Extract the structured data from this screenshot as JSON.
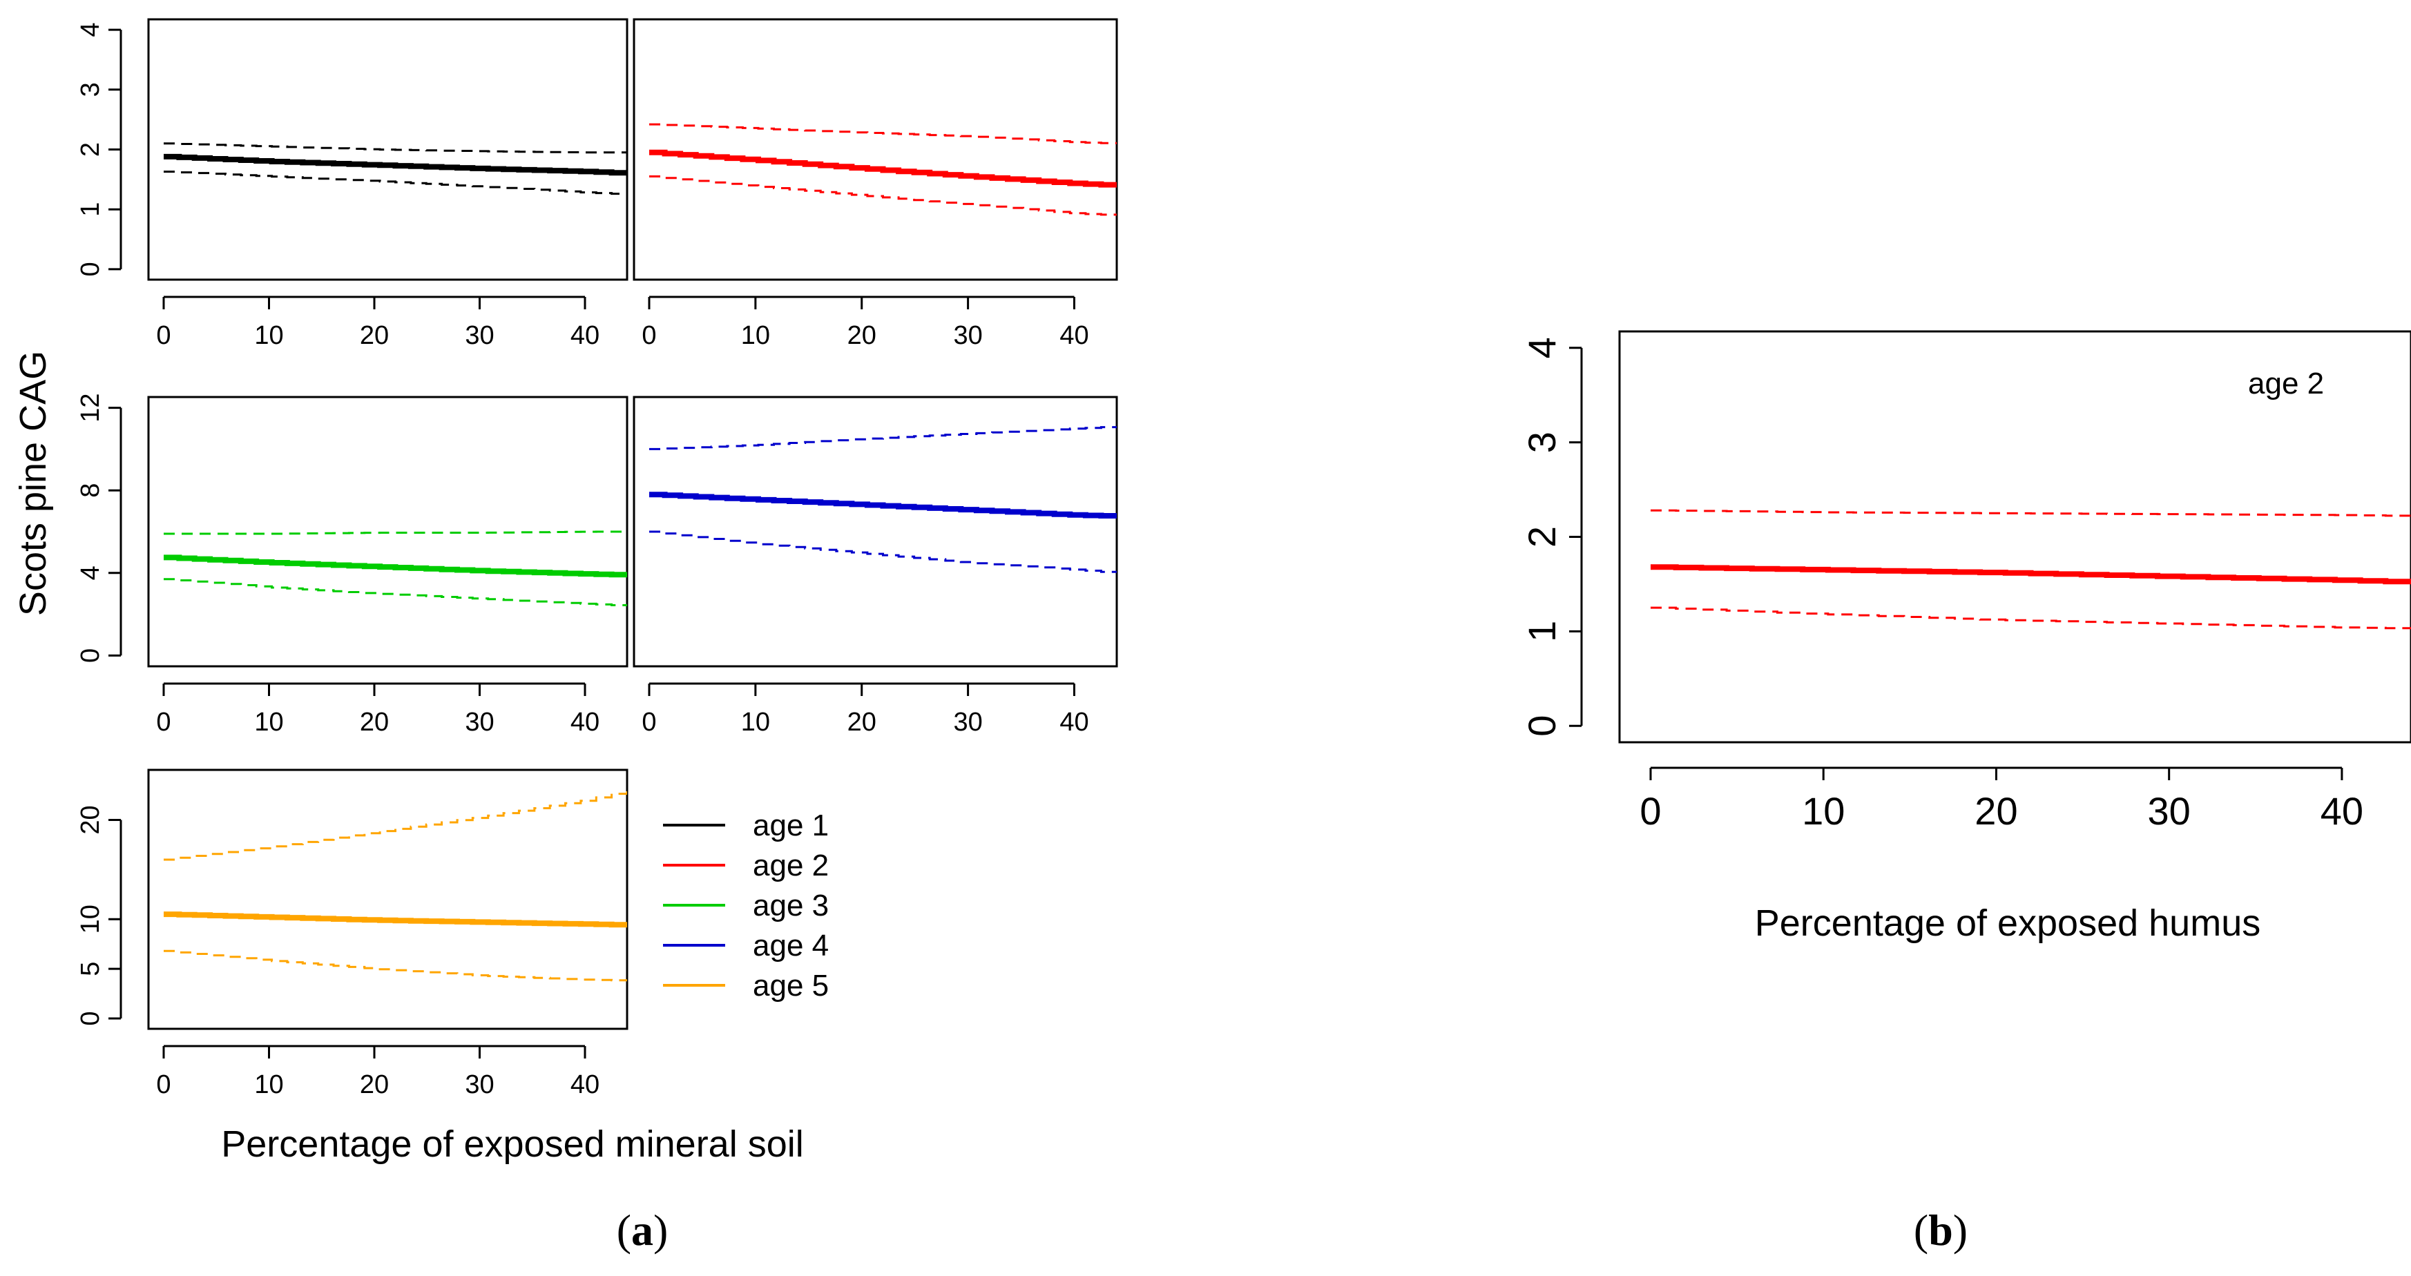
{
  "figure": {
    "label_a": "a",
    "label_b": "b"
  },
  "chart_data": [
    {
      "id": "age1",
      "type": "line",
      "color": "#000000",
      "x": [
        0,
        10,
        20,
        30,
        40,
        44
      ],
      "estimate": [
        1.88,
        1.8,
        1.74,
        1.68,
        1.63,
        1.6
      ],
      "upper": [
        2.1,
        2.05,
        2.0,
        1.97,
        1.95,
        1.95
      ],
      "lower": [
        1.63,
        1.55,
        1.47,
        1.38,
        1.28,
        1.25
      ],
      "xlim": [
        0,
        44
      ],
      "ylim": [
        0,
        4
      ],
      "xticks": [
        0,
        10,
        20,
        30,
        40
      ],
      "yticks": [
        0,
        1,
        2,
        3,
        4
      ]
    },
    {
      "id": "age2",
      "type": "line",
      "color": "#ff0000",
      "x": [
        0,
        10,
        20,
        30,
        40,
        44
      ],
      "estimate": [
        1.95,
        1.82,
        1.68,
        1.55,
        1.43,
        1.4
      ],
      "upper": [
        2.42,
        2.35,
        2.28,
        2.22,
        2.12,
        2.1
      ],
      "lower": [
        1.55,
        1.38,
        1.23,
        1.08,
        0.93,
        0.9
      ],
      "xlim": [
        0,
        44
      ],
      "ylim": [
        0,
        4
      ],
      "xticks": [
        0,
        10,
        20,
        30,
        40
      ],
      "yticks": [
        0,
        1,
        2,
        3,
        4
      ]
    },
    {
      "id": "age3",
      "type": "line",
      "color": "#00cc00",
      "x": [
        0,
        10,
        20,
        30,
        40,
        44
      ],
      "estimate": [
        4.75,
        4.5,
        4.3,
        4.1,
        3.95,
        3.9
      ],
      "upper": [
        5.9,
        5.9,
        5.95,
        5.95,
        6.0,
        6.0
      ],
      "lower": [
        3.7,
        3.3,
        3.0,
        2.75,
        2.5,
        2.4
      ],
      "xlim": [
        0,
        44
      ],
      "ylim": [
        0,
        12
      ],
      "xticks": [
        0,
        10,
        20,
        30,
        40
      ],
      "yticks": [
        0,
        4,
        8,
        12
      ]
    },
    {
      "id": "age4",
      "type": "line",
      "color": "#0000cc",
      "x": [
        0,
        10,
        20,
        30,
        40,
        44
      ],
      "estimate": [
        7.8,
        7.55,
        7.3,
        7.05,
        6.8,
        6.75
      ],
      "upper": [
        10.0,
        10.2,
        10.5,
        10.75,
        11.0,
        11.1
      ],
      "lower": [
        6.0,
        5.4,
        4.95,
        4.5,
        4.15,
        4.0
      ],
      "xlim": [
        0,
        44
      ],
      "ylim": [
        0,
        12
      ],
      "xticks": [
        0,
        10,
        20,
        30,
        40
      ],
      "yticks": [
        0,
        4,
        8,
        12
      ]
    },
    {
      "id": "age5",
      "type": "line",
      "color": "#ffa500",
      "x": [
        0,
        10,
        20,
        30,
        40,
        44
      ],
      "estimate": [
        10.5,
        10.2,
        9.9,
        9.7,
        9.5,
        9.4
      ],
      "upper": [
        16.0,
        17.3,
        18.8,
        20.3,
        22.0,
        23.0
      ],
      "lower": [
        6.8,
        5.8,
        5.0,
        4.3,
        3.9,
        3.8
      ],
      "xlim": [
        0,
        44
      ],
      "ylim": [
        0,
        24
      ],
      "xticks": [
        0,
        10,
        20,
        30,
        40
      ],
      "yticks": [
        0,
        5,
        10,
        20
      ]
    },
    {
      "id": "humus-age2",
      "type": "line",
      "color": "#ff0000",
      "annotation": "age 2",
      "x": [
        0,
        10,
        20,
        30,
        40,
        44
      ],
      "estimate": [
        1.68,
        1.65,
        1.62,
        1.58,
        1.54,
        1.52
      ],
      "upper": [
        2.28,
        2.26,
        2.25,
        2.24,
        2.23,
        2.22
      ],
      "lower": [
        1.25,
        1.18,
        1.12,
        1.08,
        1.04,
        1.03
      ],
      "xlim": [
        0,
        44
      ],
      "ylim": [
        0,
        4
      ],
      "xticks": [
        0,
        10,
        20,
        30,
        40
      ],
      "yticks": [
        0,
        1,
        2,
        3,
        4
      ],
      "xlabel": "Percentage of exposed humus"
    }
  ],
  "shared": {
    "ylabel": "Scots pine CAG",
    "xlabel_a": "Percentage of exposed mineral soil",
    "legend": [
      {
        "label": "age 1",
        "color": "#000000"
      },
      {
        "label": "age 2",
        "color": "#ff0000"
      },
      {
        "label": "age 3",
        "color": "#00cc00"
      },
      {
        "label": "age 4",
        "color": "#0000cc"
      },
      {
        "label": "age 5",
        "color": "#ffa500"
      }
    ]
  }
}
